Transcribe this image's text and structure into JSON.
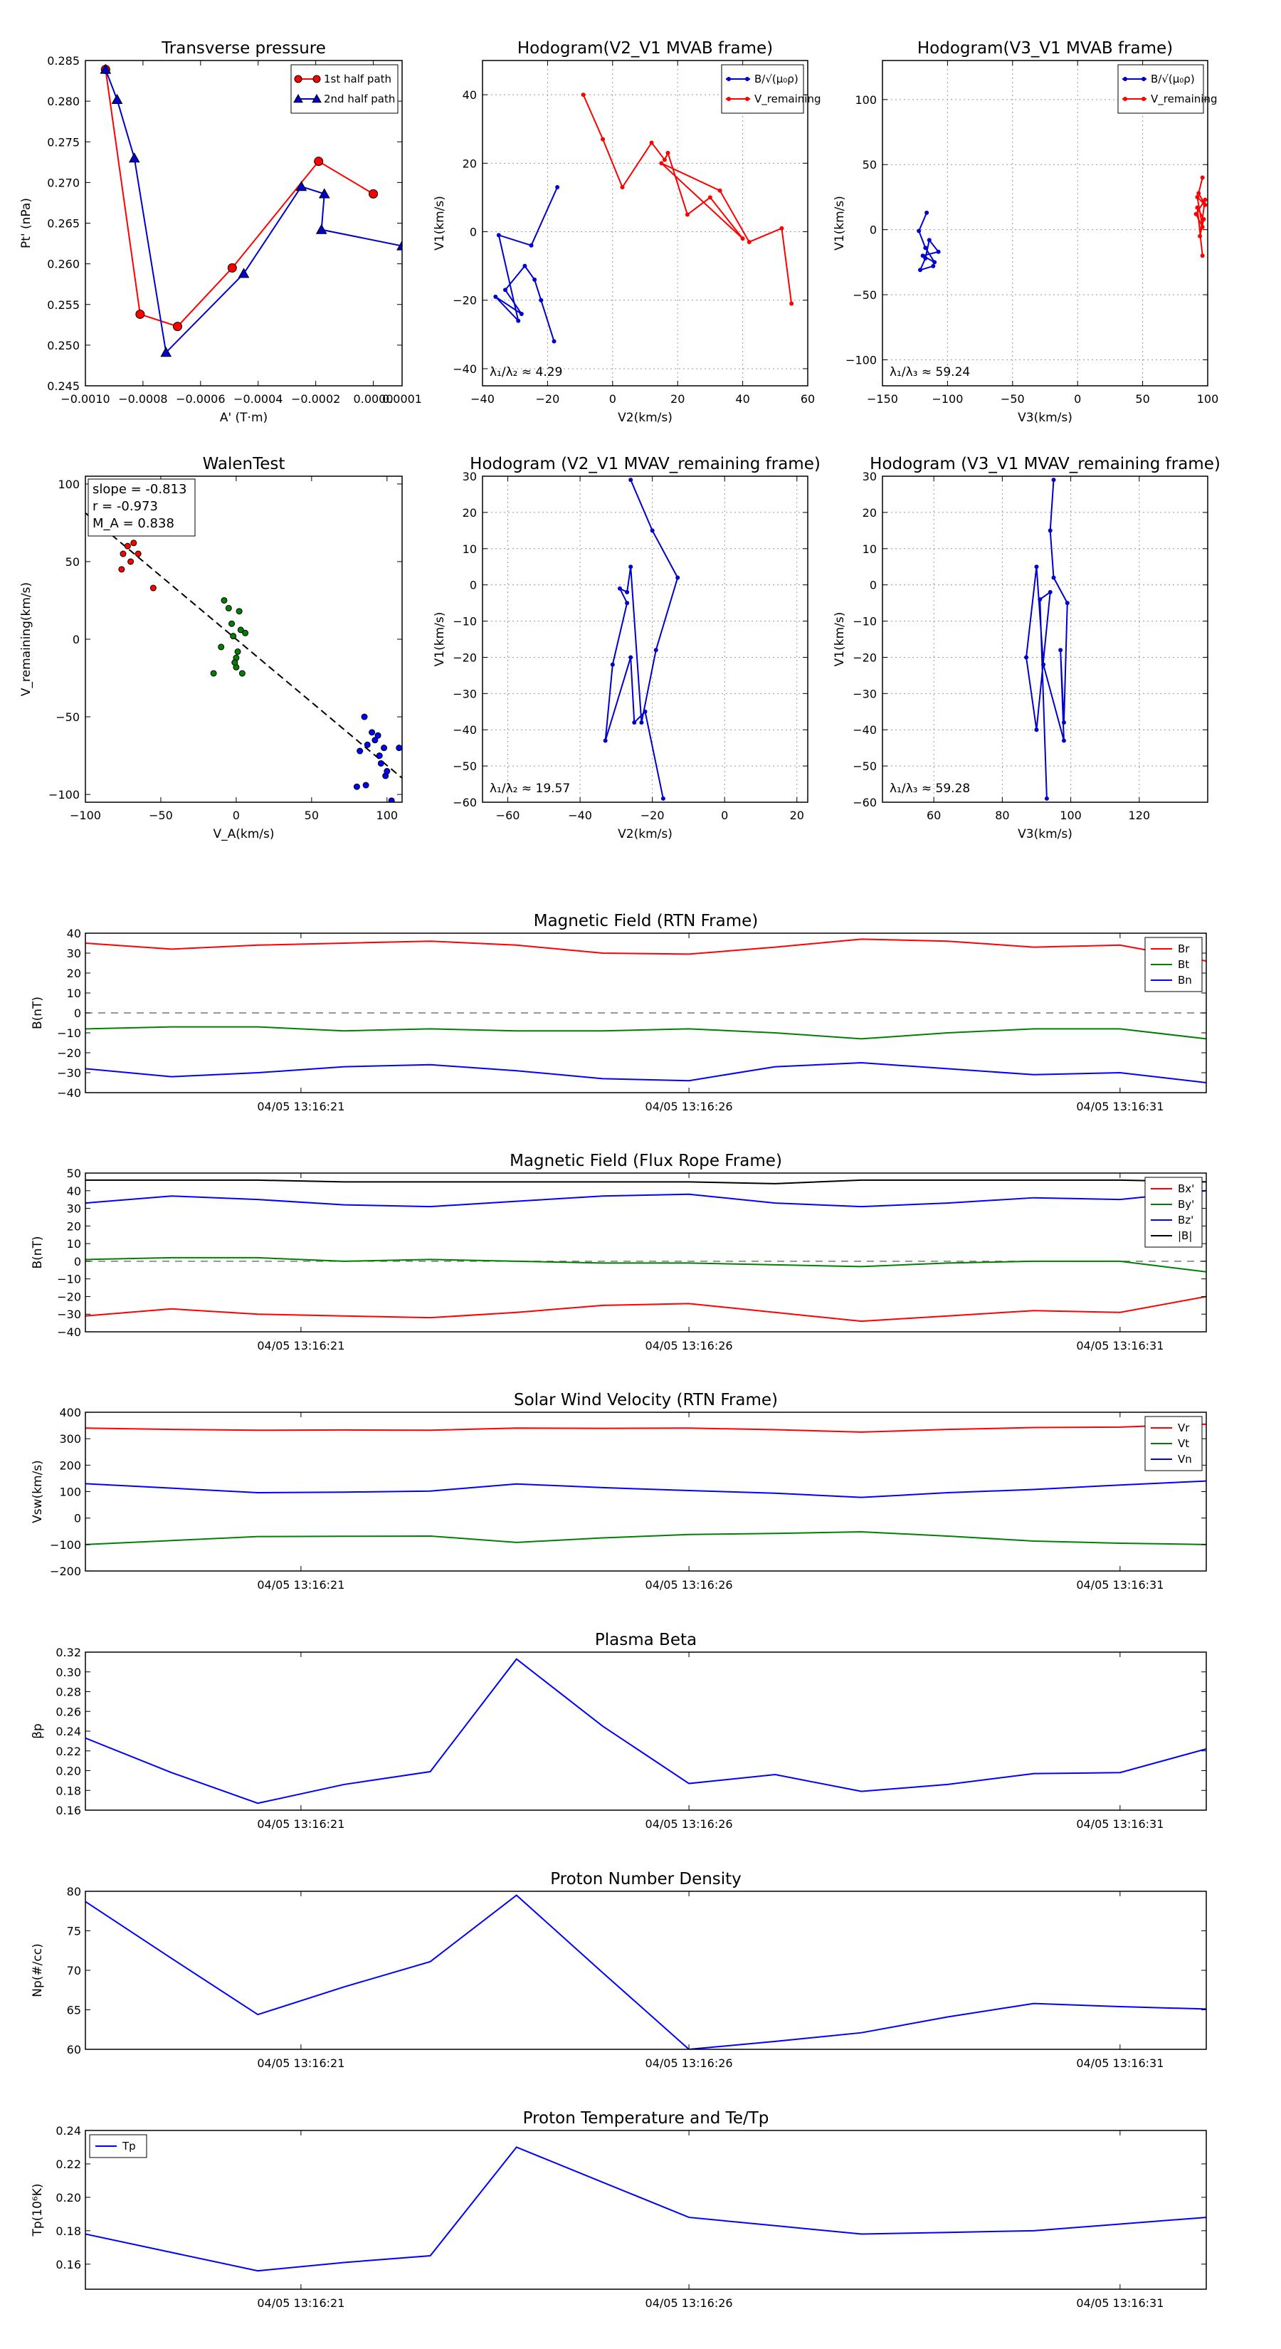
{
  "top_charts": [
    {
      "id": "tp",
      "title": "Transverse pressure",
      "xlabel": "A' (T·m)",
      "ylabel": "Pt' (nPa)",
      "xlim": [
        -0.001,
        0.0001
      ],
      "ylim": [
        0.245,
        0.285
      ],
      "xticks": [
        -0.001,
        -0.0008,
        -0.0006,
        -0.0004,
        -0.0002,
        0.0,
        0.0001
      ],
      "xtick_labels": [
        "−0.0010",
        "−0.0008",
        "−0.0006",
        "−0.0004",
        "−0.0002",
        "0.0000",
        "0.0001"
      ],
      "yticks": [
        0.245,
        0.25,
        0.255,
        0.26,
        0.265,
        0.27,
        0.275,
        0.28,
        0.285
      ],
      "ytick_labels": [
        "0.245",
        "0.250",
        "0.255",
        "0.260",
        "0.265",
        "0.270",
        "0.275",
        "0.280",
        "0.285"
      ],
      "grid": false,
      "legend_pos": "top-right",
      "series": [
        {
          "name": "1st half path",
          "color": "#ff0000",
          "marker": "circle",
          "size": 6,
          "x": [
            -0.00093,
            -0.00081,
            -0.00068,
            -0.00049,
            -0.00019,
            0.0
          ],
          "y": [
            0.2839,
            0.2538,
            0.2523,
            0.2595,
            0.2726,
            0.2686
          ]
        },
        {
          "name": "2nd half path",
          "color": "#0000cc",
          "marker": "triangle",
          "size": 6,
          "x": [
            -0.00093,
            -0.00089,
            -0.00083,
            -0.00072,
            -0.00045,
            -0.00025,
            -0.00017,
            -0.00018,
            0.0001
          ],
          "y": [
            0.2839,
            0.2802,
            0.273,
            0.2491,
            0.2588,
            0.2695,
            0.2686,
            0.2642,
            0.2622
          ]
        }
      ]
    },
    {
      "id": "h1",
      "title": "Hodogram(V2_V1 MVAB frame)",
      "xlabel": "V2(km/s)",
      "ylabel": "V1(km/s)",
      "xlim": [
        -40,
        60
      ],
      "ylim": [
        -45,
        50
      ],
      "xticks": [
        -40,
        -20,
        0,
        20,
        40,
        60
      ],
      "yticks": [
        -40,
        -20,
        0,
        20,
        40
      ],
      "grid": true,
      "legend_pos": "top-right",
      "annotation": "λ₁/λ₂ ≈ 4.29",
      "series": [
        {
          "name": "B/√(μ₀ρ)",
          "color": "#0000cc",
          "marker": "dot",
          "size": 3,
          "x": [
            -17,
            -25,
            -35,
            -29,
            -36,
            -28,
            -33,
            -27,
            -24,
            -22,
            -18
          ],
          "y": [
            13,
            -4,
            -1,
            -26,
            -19,
            -24,
            -17,
            -10,
            -14,
            -20,
            -32
          ]
        },
        {
          "name": "V_remaining",
          "color": "#ff0000",
          "marker": "dot",
          "size": 3,
          "x": [
            -9,
            -3,
            3,
            12,
            16,
            17,
            23,
            30,
            40,
            15,
            33,
            42,
            52,
            55
          ],
          "y": [
            40,
            27,
            13,
            26,
            21,
            23,
            5,
            10,
            -2,
            20,
            12,
            -3,
            1,
            -21
          ]
        }
      ]
    },
    {
      "id": "h2",
      "title": "Hodogram(V3_V1 MVAB frame)",
      "xlabel": "V3(km/s)",
      "ylabel": "V1(km/s)",
      "xlim": [
        -150,
        100
      ],
      "ylim": [
        -120,
        130
      ],
      "xticks": [
        -150,
        -100,
        -50,
        0,
        50,
        100
      ],
      "yticks": [
        -100,
        -50,
        0,
        50,
        100
      ],
      "grid": true,
      "legend_pos": "top-right",
      "annotation": "λ₁/λ₃ ≈ 59.24",
      "series": [
        {
          "name": "B/√(μ₀ρ)",
          "color": "#0000cc",
          "marker": "dot",
          "size": 3,
          "x": [
            -116,
            -122,
            -117,
            -110,
            -119,
            -107,
            -114,
            -117,
            -121,
            -111
          ],
          "y": [
            13,
            -1,
            -14,
            -25,
            -20,
            -17,
            -8,
            -22,
            -31,
            -28
          ]
        },
        {
          "name": "V_remaining",
          "color": "#ff0000",
          "marker": "dot",
          "size": 3,
          "x": [
            96,
            93,
            98,
            92,
            96,
            91,
            98,
            94,
            97,
            92,
            96
          ],
          "y": [
            40,
            28,
            19,
            25,
            2,
            12,
            23,
            -5,
            8,
            17,
            -20
          ]
        }
      ]
    },
    {
      "id": "walen",
      "title": "WalenTest",
      "xlabel": "V_A(km/s)",
      "ylabel": "V_remaining(km/s)",
      "xlim": [
        -100,
        110
      ],
      "ylim": [
        -105,
        105
      ],
      "xticks": [
        -100,
        -50,
        0,
        50,
        100
      ],
      "yticks": [
        -100,
        -50,
        0,
        50,
        100
      ],
      "grid": false,
      "stats": [
        "slope = -0.813",
        "r = -0.973",
        "M_A = 0.838"
      ],
      "fit": {
        "slope": -0.813,
        "intercept": 0,
        "style": "dashed",
        "color": "#000000"
      },
      "series": [
        {
          "name": "red",
          "color": "#ff0000",
          "marker": "circle",
          "size": 4,
          "x": [
            -95,
            -90,
            -88,
            -75,
            -72,
            -70,
            -68,
            -65,
            -55,
            -76
          ],
          "y": [
            85,
            75,
            70,
            55,
            60,
            50,
            62,
            55,
            33,
            45
          ]
        },
        {
          "name": "green",
          "color": "#008000",
          "marker": "circle",
          "size": 4,
          "x": [
            -15,
            -8,
            -5,
            -3,
            -2,
            0,
            0,
            2,
            3,
            -1,
            4,
            6,
            -10,
            1
          ],
          "y": [
            -22,
            25,
            20,
            10,
            2,
            -12,
            -18,
            18,
            6,
            -15,
            -22,
            4,
            -5,
            -8
          ]
        },
        {
          "name": "blue",
          "color": "#0000ff",
          "marker": "circle",
          "size": 4,
          "x": [
            80,
            82,
            85,
            87,
            90,
            92,
            95,
            96,
            98,
            99,
            100,
            103,
            108,
            86,
            94
          ],
          "y": [
            -95,
            -72,
            -50,
            -68,
            -60,
            -65,
            -75,
            -80,
            -70,
            -88,
            -85,
            -104,
            -70,
            -94,
            -62
          ]
        }
      ]
    },
    {
      "id": "h3",
      "title": "Hodogram (V2_V1 MVAV_remaining frame)",
      "xlabel": "V2(km/s)",
      "ylabel": "V1(km/s)",
      "xlim": [
        -67,
        23
      ],
      "ylim": [
        -60,
        30
      ],
      "xticks": [
        -60,
        -40,
        -20,
        0,
        20
      ],
      "yticks": [
        -60,
        -50,
        -40,
        -30,
        -20,
        -10,
        0,
        10,
        20,
        30
      ],
      "grid": true,
      "annotation": "λ₁/λ₂ ≈ 19.57",
      "series": [
        {
          "name": "path",
          "color": "#0000cc",
          "marker": "dot",
          "size": 3,
          "x": [
            -26,
            -20,
            -13,
            -19,
            -23,
            -26,
            -27,
            -29,
            -27,
            -31,
            -33,
            -26,
            -25,
            -22,
            -17
          ],
          "y": [
            29,
            15,
            2,
            -18,
            -38,
            5,
            -2,
            -1,
            -5,
            -22,
            -43,
            -20,
            -38,
            -35,
            -59
          ]
        }
      ]
    },
    {
      "id": "h4",
      "title": "Hodogram (V3_V1 MVAV_remaining frame)",
      "xlabel": "V3(km/s)",
      "ylabel": "V1(km/s)",
      "xlim": [
        45,
        140
      ],
      "ylim": [
        -60,
        30
      ],
      "xticks": [
        60,
        80,
        100,
        120
      ],
      "yticks": [
        -60,
        -50,
        -40,
        -30,
        -20,
        -10,
        0,
        10,
        20,
        30
      ],
      "grid": true,
      "annotation": "λ₁/λ₃ ≈ 59.28",
      "series": [
        {
          "name": "path",
          "color": "#0000cc",
          "marker": "dot",
          "size": 3,
          "x": [
            95,
            94,
            95,
            99,
            98,
            97,
            98,
            92,
            90,
            87,
            90,
            94,
            91,
            93
          ],
          "y": [
            29,
            15,
            2,
            -5,
            -38,
            -18,
            -43,
            -22,
            5,
            -20,
            -40,
            -2,
            -4,
            -59
          ]
        }
      ]
    }
  ],
  "time_charts": [
    {
      "id": "mag_rtn",
      "title": "Magnetic Field (RTN Frame)",
      "ylabel": "B(nT)",
      "ylim": [
        -40,
        40
      ],
      "yticks": [
        -40,
        -30,
        -20,
        -10,
        0,
        10,
        20,
        30,
        40
      ],
      "zero_line": true,
      "legend_pos": "top-right",
      "series": [
        {
          "name": "Br",
          "color": "#ff0000",
          "values": [
            35,
            32,
            34,
            35,
            36,
            34,
            30,
            29.5,
            33,
            37,
            36,
            33,
            34,
            26
          ]
        },
        {
          "name": "Bt",
          "color": "#008000",
          "values": [
            -8,
            -7,
            -7,
            -9,
            -8,
            -9,
            -9,
            -8,
            -10,
            -13,
            -10,
            -8,
            -8,
            -13
          ]
        },
        {
          "name": "Bn",
          "color": "#0000ff",
          "values": [
            -28,
            -32,
            -30,
            -27,
            -26,
            -29,
            -33,
            -34,
            -27,
            -25,
            -28,
            -31,
            -30,
            -35
          ]
        }
      ]
    },
    {
      "id": "mag_fr",
      "title": "Magnetic Field (Flux Rope Frame)",
      "ylabel": "B(nT)",
      "ylim": [
        -40,
        50
      ],
      "yticks": [
        -40,
        -30,
        -20,
        -10,
        0,
        10,
        20,
        30,
        40,
        50
      ],
      "zero_line": true,
      "legend_pos": "top-right",
      "series": [
        {
          "name": "Bx'",
          "color": "#ff0000",
          "values": [
            -31,
            -27,
            -30,
            -31,
            -32,
            -29,
            -25,
            -24,
            -29,
            -34,
            -31,
            -28,
            -29,
            -20
          ]
        },
        {
          "name": "By'",
          "color": "#008000",
          "values": [
            1,
            2,
            2,
            0,
            1,
            0,
            -1,
            -1,
            -2,
            -3,
            -1,
            0,
            0,
            -6
          ]
        },
        {
          "name": "Bz'",
          "color": "#0000ff",
          "values": [
            33,
            37,
            35,
            32,
            31,
            34,
            37,
            38,
            33,
            31,
            33,
            36,
            35,
            40
          ]
        },
        {
          "name": "|B|",
          "color": "#000000",
          "values": [
            46,
            46,
            46,
            45,
            45,
            45,
            45,
            45,
            44,
            46,
            46,
            46,
            46,
            45
          ]
        }
      ]
    },
    {
      "id": "vsw",
      "title": "Solar Wind Velocity (RTN Frame)",
      "ylabel": "Vsw(km/s)",
      "ylim": [
        -200,
        400
      ],
      "yticks": [
        -200,
        -100,
        0,
        100,
        200,
        300,
        400
      ],
      "zero_line": false,
      "legend_pos": "top-right",
      "series": [
        {
          "name": "Vr",
          "color": "#ff0000",
          "values": [
            340,
            335,
            332,
            333,
            332,
            340,
            339,
            340,
            334,
            325,
            335,
            342,
            344,
            355
          ]
        },
        {
          "name": "Vt",
          "color": "#008000",
          "values": [
            -100,
            -85,
            -70,
            -69,
            -68,
            -92,
            -75,
            -62,
            -58,
            -52,
            -68,
            -87,
            -95,
            -100
          ]
        },
        {
          "name": "Vn",
          "color": "#0000ff",
          "values": [
            130,
            113,
            96,
            98,
            102,
            129,
            115,
            104,
            94,
            78,
            96,
            108,
            125,
            140
          ]
        }
      ]
    },
    {
      "id": "beta",
      "title": "Plasma Beta",
      "ylabel": "βp",
      "ylim": [
        0.16,
        0.32
      ],
      "yticks": [
        0.16,
        0.18,
        0.2,
        0.22,
        0.24,
        0.26,
        0.28,
        0.3,
        0.32
      ],
      "zero_line": false,
      "series": [
        {
          "name": "beta",
          "color": "#0000ff",
          "values": [
            0.233,
            0.198,
            0.167,
            0.186,
            0.199,
            0.313,
            0.245,
            0.187,
            0.196,
            0.179,
            0.186,
            0.197,
            0.198,
            0.222
          ]
        }
      ]
    },
    {
      "id": "np",
      "title": "Proton Number Density",
      "ylabel": "Np(#/cc)",
      "ylim": [
        60,
        80
      ],
      "yticks": [
        60,
        65,
        70,
        75,
        80
      ],
      "zero_line": false,
      "series": [
        {
          "name": "Np",
          "color": "#0000ff",
          "values": [
            78.7,
            71.5,
            64.4,
            67.9,
            71.1,
            79.5,
            69.7,
            60.0,
            61.0,
            62.1,
            64.1,
            65.8,
            65.4,
            65.1
          ]
        }
      ]
    },
    {
      "id": "tp",
      "title": "Proton Temperature and Te/Tp",
      "ylabel": "Tp(10⁶K)",
      "ylim": [
        0.145,
        0.24
      ],
      "yticks": [
        0.16,
        0.18,
        0.2,
        0.22,
        0.24
      ],
      "zero_line": false,
      "legend_pos": "top-left",
      "series": [
        {
          "name": "Tp",
          "color": "#0000ff",
          "values": [
            0.178,
            0.167,
            0.156,
            0.161,
            0.165,
            0.23,
            0.209,
            0.188,
            0.183,
            0.178,
            0.179,
            0.18,
            0.184,
            0.188
          ]
        }
      ]
    }
  ],
  "time_xticks": [
    "04/05 13:16:21",
    "04/05 13:16:26",
    "04/05 13:16:31"
  ]
}
